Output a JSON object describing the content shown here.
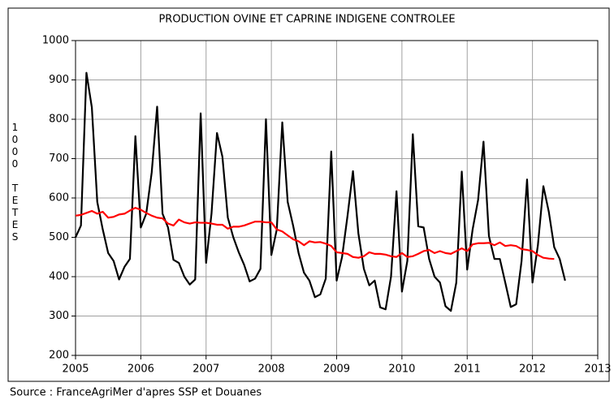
{
  "chart_data": {
    "type": "line",
    "title": "PRODUCTION OVINE ET CAPRINE INDIGENE CONTROLEE",
    "y_label": "1000 TETES",
    "source": "Source : FranceAgriMer d'apres SSP et Douanes",
    "xlim": [
      2005,
      2013
    ],
    "xticks": [
      2005,
      2006,
      2007,
      2008,
      2009,
      2010,
      2011,
      2012,
      2013
    ],
    "ylim": [
      200,
      1000
    ],
    "yticks": [
      200,
      300,
      400,
      500,
      600,
      700,
      800,
      900,
      1000
    ],
    "grid": true,
    "x": [
      2005,
      2005.083,
      2005.167,
      2005.25,
      2005.333,
      2005.417,
      2005.5,
      2005.583,
      2005.667,
      2005.75,
      2005.833,
      2005.917,
      2006,
      2006.083,
      2006.167,
      2006.25,
      2006.333,
      2006.417,
      2006.5,
      2006.583,
      2006.667,
      2006.75,
      2006.833,
      2006.917,
      2007,
      2007.083,
      2007.167,
      2007.25,
      2007.333,
      2007.417,
      2007.5,
      2007.583,
      2007.667,
      2007.75,
      2007.833,
      2007.917,
      2008,
      2008.083,
      2008.167,
      2008.25,
      2008.333,
      2008.417,
      2008.5,
      2008.583,
      2008.667,
      2008.75,
      2008.833,
      2008.917,
      2009,
      2009.083,
      2009.167,
      2009.25,
      2009.333,
      2009.417,
      2009.5,
      2009.583,
      2009.667,
      2009.75,
      2009.833,
      2009.917,
      2010,
      2010.083,
      2010.167,
      2010.25,
      2010.333,
      2010.417,
      2010.5,
      2010.583,
      2010.667,
      2010.75,
      2010.833,
      2010.917,
      2011,
      2011.083,
      2011.167,
      2011.25,
      2011.333,
      2011.417,
      2011.5,
      2011.583,
      2011.667,
      2011.75,
      2011.833,
      2011.917,
      2012,
      2012.083,
      2012.167,
      2012.25,
      2012.333,
      2012.417,
      2012.5
    ],
    "series": [
      {
        "color": "#000000",
        "values": [
          500,
          530,
          918,
          830,
          590,
          520,
          460,
          440,
          393,
          425,
          445,
          757,
          525,
          560,
          665,
          832,
          560,
          525,
          443,
          435,
          400,
          380,
          393,
          815,
          435,
          560,
          765,
          705,
          550,
          500,
          462,
          430,
          388,
          395,
          420,
          800,
          455,
          520,
          792,
          590,
          530,
          460,
          410,
          390,
          348,
          355,
          395,
          718,
          390,
          450,
          555,
          668,
          510,
          420,
          378,
          390,
          322,
          317,
          400,
          617,
          362,
          440,
          762,
          528,
          525,
          445,
          400,
          385,
          325,
          313,
          385,
          667,
          418,
          520,
          595,
          743,
          503,
          445,
          445,
          385,
          323,
          330,
          440,
          647,
          385,
          480,
          630,
          565,
          475,
          445,
          390
        ]
      },
      {
        "color": "#ff0000",
        "values": [
          555,
          557,
          562,
          567,
          560,
          565,
          550,
          552,
          558,
          560,
          568,
          575,
          570,
          562,
          555,
          550,
          548,
          535,
          530,
          545,
          538,
          535,
          538,
          537,
          537,
          535,
          532,
          532,
          522,
          527,
          527,
          530,
          535,
          540,
          540,
          538,
          538,
          520,
          515,
          505,
          495,
          490,
          480,
          490,
          487,
          488,
          484,
          478,
          462,
          460,
          458,
          450,
          448,
          452,
          462,
          458,
          458,
          456,
          452,
          450,
          460,
          450,
          452,
          458,
          465,
          468,
          460,
          465,
          460,
          458,
          465,
          472,
          465,
          482,
          485,
          485,
          486,
          480,
          487,
          478,
          480,
          478,
          470,
          468,
          465,
          455,
          448,
          446,
          445,
          null,
          null
        ]
      }
    ]
  }
}
